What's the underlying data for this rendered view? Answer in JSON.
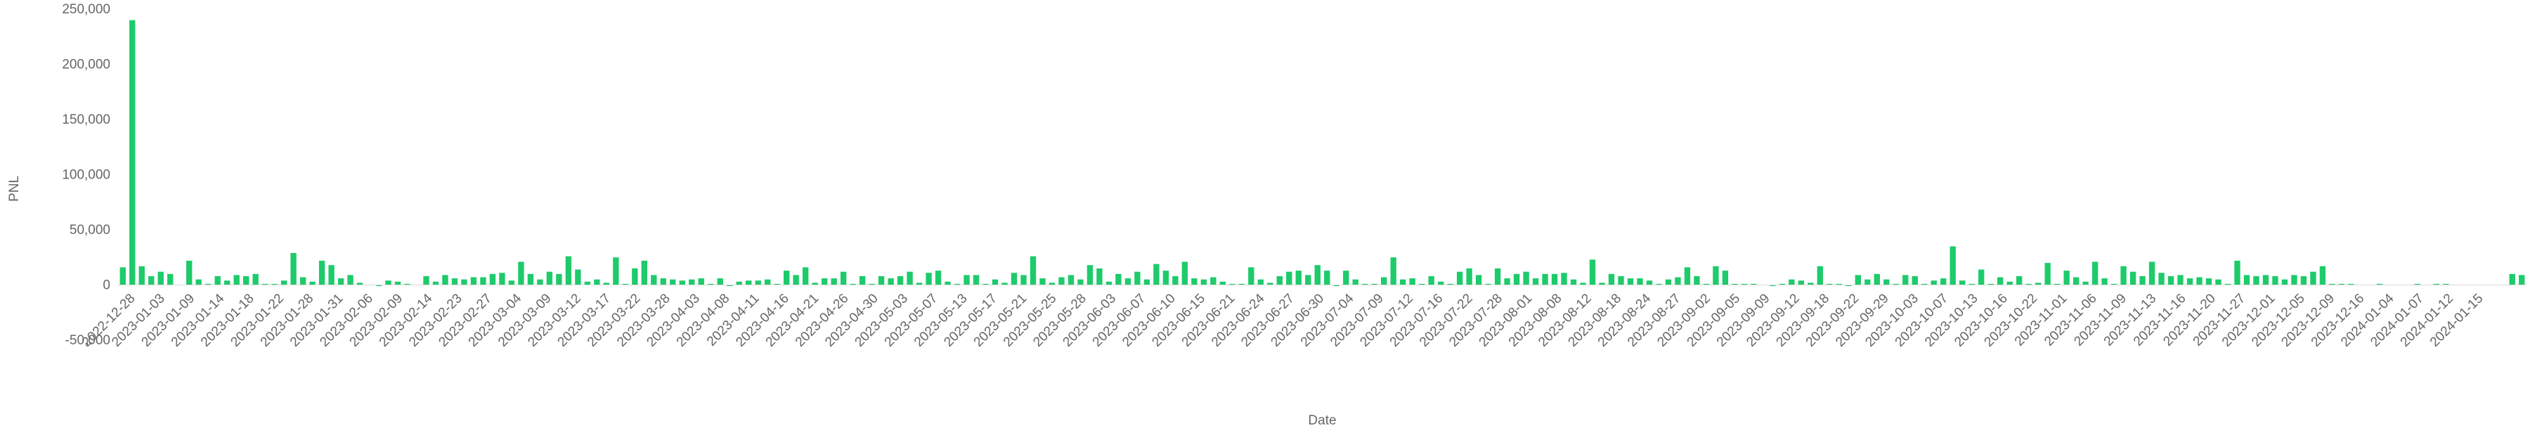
{
  "chart_data": {
    "type": "bar",
    "title": "",
    "xlabel": "Date",
    "ylabel": "PNL",
    "ylim": [
      -50000,
      250000
    ],
    "yticks": [
      -50000,
      0,
      50000,
      100000,
      150000,
      200000,
      250000
    ],
    "ytick_labels": [
      "-50,000",
      "0",
      "50,000",
      "100,000",
      "150,000",
      "200,000",
      "250,000"
    ],
    "bar_color": "#1ecb6b",
    "grid": false,
    "legend": "none",
    "xtick_labels": [
      "2022-12-28",
      "2023-01-03",
      "2023-01-09",
      "2023-01-14",
      "2023-01-18",
      "2023-01-22",
      "2023-01-28",
      "2023-01-31",
      "2023-02-06",
      "2023-02-09",
      "2023-02-14",
      "2023-02-23",
      "2023-02-27",
      "2023-03-04",
      "2023-03-09",
      "2023-03-12",
      "2023-03-17",
      "2023-03-22",
      "2023-03-28",
      "2023-04-03",
      "2023-04-08",
      "2023-04-11",
      "2023-04-16",
      "2023-04-21",
      "2023-04-26",
      "2023-04-30",
      "2023-05-03",
      "2023-05-07",
      "2023-05-13",
      "2023-05-17",
      "2023-05-21",
      "2023-05-25",
      "2023-05-28",
      "2023-06-03",
      "2023-06-07",
      "2023-06-10",
      "2023-06-15",
      "2023-06-21",
      "2023-06-24",
      "2023-06-27",
      "2023-06-30",
      "2023-07-04",
      "2023-07-09",
      "2023-07-12",
      "2023-07-16",
      "2023-07-22",
      "2023-07-28",
      "2023-08-01",
      "2023-08-08",
      "2023-08-12",
      "2023-08-18",
      "2023-08-24",
      "2023-08-27",
      "2023-09-02",
      "2023-09-05",
      "2023-09-09",
      "2023-09-12",
      "2023-09-18",
      "2023-09-22",
      "2023-09-29",
      "2023-10-03",
      "2023-10-07",
      "2023-10-13",
      "2023-10-16",
      "2023-10-22",
      "2023-11-01",
      "2023-11-06",
      "2023-11-09",
      "2023-11-13",
      "2023-11-16",
      "2023-11-20",
      "2023-11-27",
      "2023-12-01",
      "2023-12-05",
      "2023-12-09",
      "2023-12-16",
      "2024-01-04",
      "2024-01-07",
      "2024-01-12",
      "2024-01-15"
    ],
    "values": [
      16000,
      240000,
      17000,
      8000,
      12000,
      10000,
      0,
      22000,
      5000,
      1000,
      8000,
      4000,
      9000,
      8000,
      10000,
      1000,
      1000,
      4000,
      29000,
      7000,
      3000,
      22000,
      18000,
      6000,
      9000,
      2000,
      0,
      -1000,
      4000,
      3000,
      1000,
      0,
      8000,
      3000,
      9000,
      6000,
      5000,
      7000,
      7000,
      10000,
      11000,
      4000,
      21000,
      10000,
      5000,
      12000,
      10000,
      26000,
      14000,
      3000,
      5000,
      2000,
      25000,
      1000,
      15000,
      22000,
      9000,
      6000,
      5000,
      4000,
      5000,
      6000,
      1000,
      6000,
      -1000,
      3000,
      4000,
      4000,
      5000,
      1000,
      13000,
      9000,
      16000,
      2000,
      6000,
      6000,
      12000,
      1000,
      8000,
      1000,
      8000,
      6000,
      8000,
      12000,
      2000,
      11000,
      13000,
      3000,
      1000,
      9000,
      9000,
      1000,
      5000,
      2000,
      11000,
      9000,
      26000,
      6000,
      2000,
      7000,
      9000,
      5000,
      18000,
      15000,
      3000,
      10000,
      6000,
      12000,
      5000,
      19000,
      13000,
      8000,
      21000,
      6000,
      5000,
      7000,
      3000,
      1000,
      1000,
      16000,
      5000,
      2000,
      8000,
      12000,
      13000,
      9000,
      18000,
      13000,
      -1000,
      13000,
      5000,
      1000,
      1000,
      7000,
      25000,
      5000,
      6000,
      1000,
      8000,
      3000,
      1000,
      12000,
      15000,
      9000,
      1000,
      15000,
      6000,
      10000,
      12000,
      6000,
      10000,
      10000,
      11000,
      5000,
      2000,
      23000,
      2000,
      10000,
      8000,
      6000,
      6000,
      4000,
      1000,
      5000,
      7000,
      16000,
      8000,
      1000,
      17000,
      13000,
      1000,
      1000,
      1000,
      0,
      -1000,
      1000,
      5000,
      4000,
      2000,
      17000,
      1000,
      1000,
      -1000,
      9000,
      5000,
      10000,
      5000,
      1000,
      9000,
      8000,
      1000,
      4000,
      6000,
      35000,
      4000,
      1000,
      14000,
      1000,
      7000,
      3000,
      8000,
      1000,
      2000,
      20000,
      1000,
      13000,
      7000,
      3000,
      21000,
      6000,
      1000,
      17000,
      12000,
      8000,
      21000,
      11000,
      8000,
      9000,
      6000,
      7000,
      6000,
      5000,
      1000,
      22000,
      9000,
      8000,
      9000,
      8000,
      5000,
      9000,
      8000,
      12000,
      17000,
      1000,
      1000,
      1000,
      0,
      0,
      1000,
      0,
      0,
      0,
      1000,
      0,
      1000,
      1000,
      0,
      0,
      0,
      0,
      0,
      0,
      10000,
      9000
    ]
  }
}
